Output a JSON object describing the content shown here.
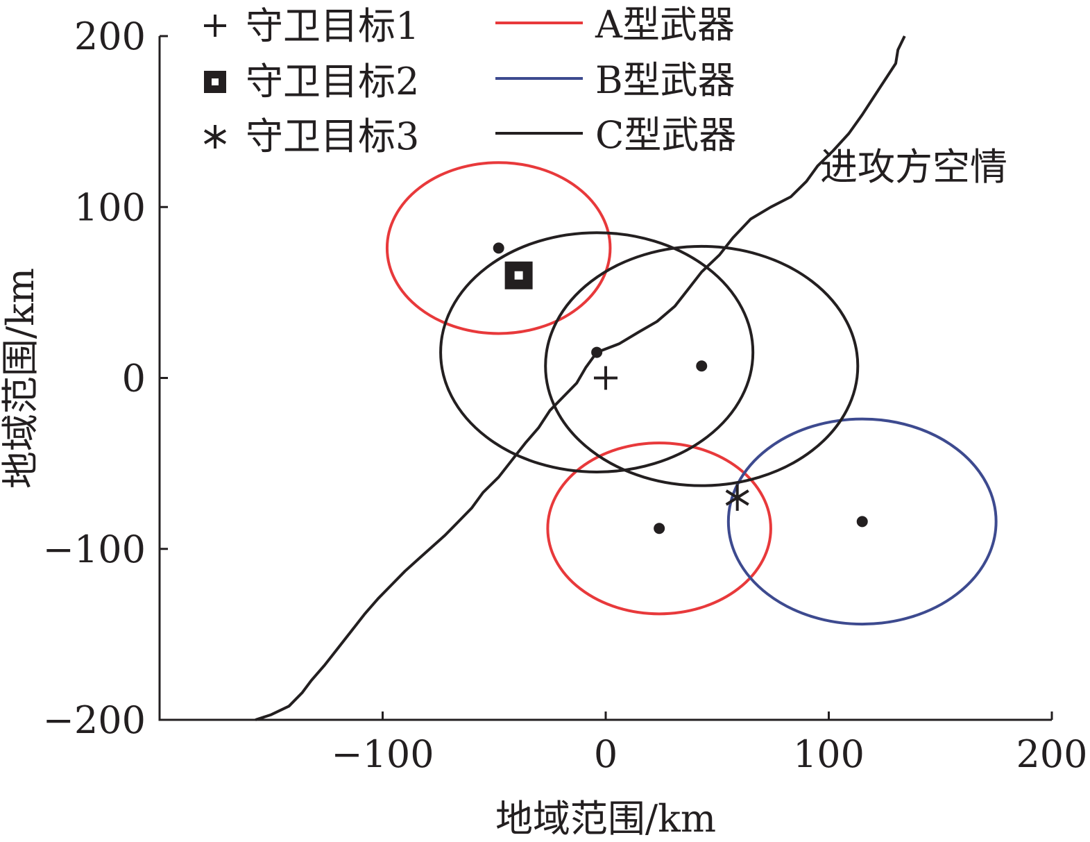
{
  "chart_data": {
    "type": "scatter",
    "xlabel": "地域范围/km",
    "ylabel": "地域范围/km",
    "xlim": [
      -200,
      200
    ],
    "ylim": [
      -200,
      200
    ],
    "xticks": [
      {
        "value": -100,
        "label": "−100"
      },
      {
        "value": 0,
        "label": "0"
      },
      {
        "value": 100,
        "label": "100"
      },
      {
        "value": 200,
        "label": "200"
      }
    ],
    "yticks": [
      {
        "value": -200,
        "label": "−200"
      },
      {
        "value": -100,
        "label": "−100"
      },
      {
        "value": 0,
        "label": "0"
      },
      {
        "value": 100,
        "label": "100"
      },
      {
        "value": 200,
        "label": "200"
      }
    ],
    "grid": false,
    "legend_position": "top-left",
    "targets": [
      {
        "name": "守卫目标1",
        "marker": "plus",
        "x": 0,
        "y": 0
      },
      {
        "name": "守卫目标2",
        "marker": "square",
        "x": -39,
        "y": 60
      },
      {
        "name": "守卫目标3",
        "marker": "asterisk",
        "x": 59,
        "y": -70
      }
    ],
    "weapon_types": [
      {
        "name": "A型武器",
        "color": "#e8393b"
      },
      {
        "name": "B型武器",
        "color": "#3d4a8f"
      },
      {
        "name": "C型武器",
        "color": "#231f20"
      }
    ],
    "weapons": [
      {
        "type": "A型武器",
        "x": -48,
        "y": 76,
        "rx": 50,
        "ry": 50
      },
      {
        "type": "A型武器",
        "x": 24,
        "y": -88,
        "rx": 50,
        "ry": 50
      },
      {
        "type": "B型武器",
        "x": 115,
        "y": -84,
        "rx": 60,
        "ry": 60
      },
      {
        "type": "C型武器",
        "x": -4,
        "y": 15,
        "rx": 70,
        "ry": 70
      },
      {
        "type": "C型武器",
        "x": 43,
        "y": 7,
        "rx": 70,
        "ry": 70
      }
    ],
    "air_threat": {
      "name": "进攻方空情",
      "color": "#231f20",
      "points": [
        [
          -157,
          -200
        ],
        [
          -150,
          -197
        ],
        [
          -142,
          -192
        ],
        [
          -136,
          -184
        ],
        [
          -132,
          -177
        ],
        [
          -126,
          -168
        ],
        [
          -120,
          -158
        ],
        [
          -114,
          -148
        ],
        [
          -108,
          -138
        ],
        [
          -102,
          -129
        ],
        [
          -96,
          -121
        ],
        [
          -90,
          -113
        ],
        [
          -84,
          -106
        ],
        [
          -78,
          -99
        ],
        [
          -72,
          -92
        ],
        [
          -66,
          -84
        ],
        [
          -60,
          -76
        ],
        [
          -55,
          -67
        ],
        [
          -48,
          -58
        ],
        [
          -42,
          -48
        ],
        [
          -36,
          -38
        ],
        [
          -30,
          -29
        ],
        [
          -25,
          -19
        ],
        [
          -19,
          -11
        ],
        [
          -13,
          -3
        ],
        [
          -9,
          6
        ],
        [
          -4,
          15
        ],
        [
          6,
          20
        ],
        [
          15,
          27
        ],
        [
          23,
          33
        ],
        [
          31,
          42
        ],
        [
          37,
          52
        ],
        [
          43,
          62
        ],
        [
          51,
          72
        ],
        [
          57,
          82
        ],
        [
          65,
          93
        ],
        [
          74,
          100
        ],
        [
          83,
          106
        ],
        [
          90,
          115
        ],
        [
          95,
          124
        ],
        [
          102,
          133
        ],
        [
          109,
          143
        ],
        [
          115,
          154
        ],
        [
          120,
          164
        ],
        [
          125,
          174
        ],
        [
          130,
          184
        ],
        [
          131,
          192
        ],
        [
          134,
          200
        ]
      ]
    }
  }
}
